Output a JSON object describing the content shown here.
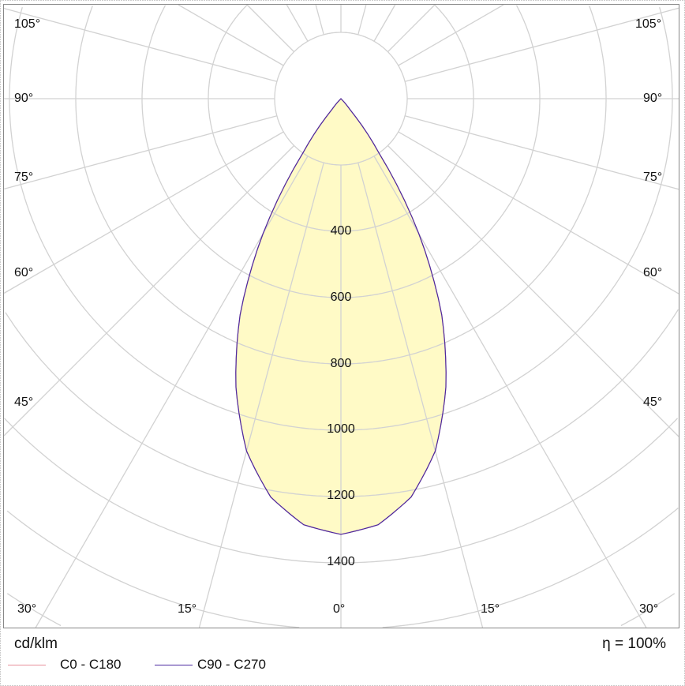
{
  "chart_data": {
    "type": "polar",
    "unit_label": "cd/klm",
    "efficiency_label": "η = 100%",
    "radial_ticks": [
      200,
      400,
      600,
      800,
      1000,
      1200,
      1400,
      1600,
      1800,
      2000,
      2200
    ],
    "radial_tick_labels": [
      "400",
      "600",
      "800",
      "1000",
      "1200",
      "1400"
    ],
    "angle_step_deg": 15,
    "angle_labels": {
      "left": [
        "105°",
        "90°",
        "75°",
        "60°",
        "45°",
        "30°",
        "15°"
      ],
      "bottom": "0°",
      "right": [
        "15°",
        "30°",
        "45°",
        "60°",
        "75°",
        "90°",
        "105°"
      ]
    },
    "series": [
      {
        "name": "C0 - C180",
        "color": "#e8909a",
        "gamma": [
          0,
          5,
          10,
          15,
          20,
          25,
          30,
          35,
          40,
          45,
          90
        ],
        "values": [
          1314,
          1290,
          1220,
          1100,
          926,
          720,
          470,
          200,
          40,
          0,
          0
        ]
      },
      {
        "name": "C90 - C270",
        "color": "#4b2aa0",
        "gamma": [
          0,
          5,
          10,
          15,
          20,
          25,
          30,
          35,
          40,
          45,
          90
        ],
        "values": [
          1314,
          1290,
          1220,
          1100,
          926,
          720,
          470,
          200,
          40,
          0,
          0
        ]
      }
    ],
    "fill_color": "#fff9c0",
    "grid": true
  }
}
